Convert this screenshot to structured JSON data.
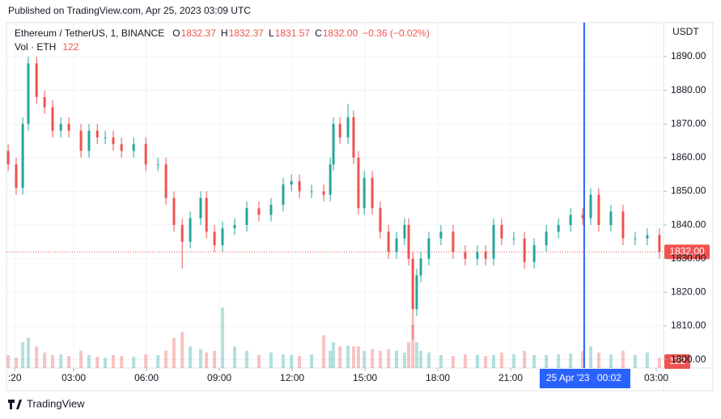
{
  "header": "Published on TradingView.com, Apr 25, 2023 03:09 UTC",
  "footer": "TradingView",
  "chart_data": {
    "type": "candlestick",
    "symbol": "Ethereum / TetherUS, 1, BINANCE",
    "ohlc_legend": [
      {
        "label": "O",
        "value": 1832.37
      },
      {
        "label": "H",
        "value": 1832.37
      },
      {
        "label": "L",
        "value": 1831.57
      },
      {
        "label": "C",
        "value": 1832.0
      }
    ],
    "change": "−0.36 (−0.02%)",
    "volume_legend": "Vol · ETH",
    "currency": "USDT",
    "up_color": "#26a69a",
    "down_color": "#ef5350",
    "x": [
      0.3,
      0.63,
      0.9,
      1.13,
      1.47,
      1.8,
      2.13,
      2.47,
      2.8,
      3.3,
      3.63,
      3.97,
      4.3,
      4.63,
      4.97,
      5.47,
      5.97,
      6.47,
      6.8,
      7.13,
      7.47,
      7.8,
      8.23,
      8.47,
      8.8,
      9.13,
      9.63,
      10.13,
      10.63,
      11.13,
      11.63,
      11.97,
      12.3,
      12.8,
      13.3,
      13.57,
      13.7,
      13.97,
      14.3,
      14.53,
      14.73,
      14.97,
      15.3,
      15.63,
      15.97,
      16.3,
      16.63,
      16.8,
      16.97,
      17.13,
      17.3,
      17.63,
      18.13,
      18.63,
      19.13,
      19.63,
      19.97,
      20.3,
      20.63,
      21.13,
      21.57,
      21.97,
      22.47,
      22.97,
      23.47,
      23.97,
      24.3,
      24.63,
      25.13,
      25.63,
      26.13,
      26.63,
      27.13
    ],
    "open": [
      1862,
      1858,
      1851,
      1870,
      1888,
      1878,
      1875,
      1868,
      1870,
      1868,
      1862,
      1868,
      1866,
      1866,
      1864,
      1862,
      1864,
      1858,
      1858,
      1848,
      1840,
      1835,
      1842,
      1848,
      1838,
      1834,
      1839,
      1840,
      1845,
      1843,
      1846,
      1852,
      1853,
      1850,
      1850,
      1849,
      1858,
      1870,
      1866,
      1872,
      1860,
      1845,
      1854,
      1845,
      1838,
      1832,
      1836,
      1840,
      1830,
      1815,
      1825,
      1830,
      1836,
      1838,
      1832,
      1830,
      1832,
      1830,
      1840,
      1836,
      1836,
      1829,
      1834,
      1838,
      1840,
      1843,
      1842,
      1849,
      1840,
      1844,
      1836,
      1836,
      1837
    ],
    "high": [
      1864,
      1860,
      1872,
      1890,
      1890,
      1880,
      1877,
      1872,
      1872,
      1870,
      1870,
      1870,
      1868,
      1868,
      1866,
      1866,
      1866,
      1860,
      1860,
      1850,
      1842,
      1844,
      1850,
      1850,
      1840,
      1841,
      1842,
      1847,
      1847,
      1848,
      1854,
      1855,
      1855,
      1852,
      1852,
      1860,
      1872,
      1872,
      1876,
      1874,
      1862,
      1856,
      1856,
      1847,
      1840,
      1838,
      1842,
      1842,
      1832,
      1827,
      1832,
      1838,
      1840,
      1840,
      1834,
      1834,
      1834,
      1842,
      1842,
      1838,
      1838,
      1836,
      1840,
      1842,
      1845,
      1845,
      1851,
      1851,
      1846,
      1846,
      1838,
      1839,
      1839
    ],
    "low": [
      1856,
      1849,
      1849,
      1868,
      1876,
      1873,
      1866,
      1866,
      1866,
      1860,
      1860,
      1864,
      1864,
      1862,
      1860,
      1860,
      1856,
      1856,
      1846,
      1838,
      1827,
      1833,
      1840,
      1836,
      1832,
      1832,
      1837,
      1838,
      1841,
      1841,
      1844,
      1850,
      1848,
      1848,
      1847,
      1847,
      1856,
      1864,
      1864,
      1858,
      1843,
      1843,
      1843,
      1836,
      1830,
      1830,
      1834,
      1828,
      1806,
      1813,
      1823,
      1828,
      1834,
      1830,
      1828,
      1828,
      1828,
      1828,
      1834,
      1834,
      1827,
      1827,
      1832,
      1836,
      1838,
      1840,
      1840,
      1838,
      1838,
      1834,
      1834,
      1834,
      1830
    ],
    "close": [
      1858,
      1851,
      1870,
      1888,
      1878,
      1875,
      1868,
      1870,
      1868,
      1862,
      1868,
      1866,
      1866,
      1864,
      1862,
      1864,
      1858,
      1858,
      1848,
      1840,
      1835,
      1842,
      1848,
      1838,
      1834,
      1839,
      1840,
      1845,
      1843,
      1846,
      1852,
      1853,
      1850,
      1850,
      1849,
      1858,
      1870,
      1866,
      1872,
      1860,
      1845,
      1854,
      1845,
      1838,
      1832,
      1836,
      1840,
      1830,
      1815,
      1825,
      1830,
      1836,
      1838,
      1832,
      1830,
      1832,
      1830,
      1840,
      1836,
      1836,
      1829,
      1834,
      1838,
      1840,
      1843,
      1842,
      1849,
      1840,
      1844,
      1836,
      1836,
      1837,
      1832
    ],
    "volume": [
      150,
      120,
      300,
      350,
      250,
      180,
      150,
      160,
      140,
      200,
      150,
      130,
      120,
      150,
      140,
      130,
      160,
      150,
      200,
      350,
      420,
      250,
      220,
      180,
      200,
      700,
      250,
      200,
      150,
      180,
      160,
      150,
      140,
      160,
      380,
      200,
      300,
      250,
      260,
      250,
      250,
      200,
      220,
      200,
      220,
      200,
      180,
      300,
      500,
      300,
      200,
      180,
      150,
      140,
      160,
      150,
      140,
      150,
      180,
      160,
      200,
      150,
      150,
      160,
      170,
      200,
      250,
      180,
      160,
      200,
      150,
      180,
      122
    ],
    "volume_lim": [
      0,
      4000
    ],
    "last_price": {
      "value": 1832,
      "label": "1832.00"
    },
    "xlim": [
      0.23,
      27.3
    ],
    "ylim": [
      1797.5,
      1900.1
    ],
    "yticks": [
      1800,
      1810,
      1820,
      1830,
      1840,
      1850,
      1860,
      1870,
      1880,
      1890
    ],
    "ytick_labels": [
      "1800.00",
      "1810.00",
      "1820.00",
      "1830.00",
      "1840.00",
      "1850.00",
      "1860.00",
      "1870.00",
      "1880.00",
      "1890.00"
    ],
    "xticks": [
      {
        "value": 0.57,
        "label": ":20"
      },
      {
        "value": 3,
        "label": "03:00"
      },
      {
        "value": 6,
        "label": "06:00"
      },
      {
        "value": 9,
        "label": "09:00"
      },
      {
        "value": 12,
        "label": "12:00"
      },
      {
        "value": 15,
        "label": "15:00"
      },
      {
        "value": 18,
        "label": "18:00"
      },
      {
        "value": 21,
        "label": "21:00"
      },
      {
        "value": 27,
        "label": "03:00"
      }
    ],
    "crosshair": {
      "x": 24.03,
      "date": "25 Apr '23",
      "time": "00:02",
      "color": "#2962ff"
    },
    "grid": true
  }
}
